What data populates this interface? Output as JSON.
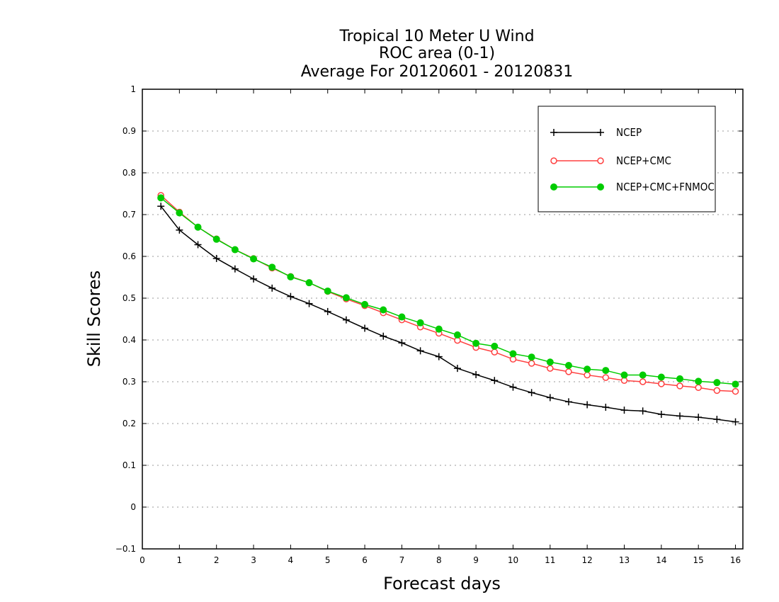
{
  "chart_data": {
    "type": "line",
    "title_lines": [
      "Tropical 10 Meter U Wind",
      "ROC area (0-1)",
      "Average For 20120601 - 20120831"
    ],
    "xlabel": "Forecast days",
    "ylabel": "Skill Scores",
    "xlim": [
      0,
      16.2
    ],
    "ylim": [
      -0.1,
      1
    ],
    "xticks": [
      "0",
      "1",
      "2",
      "3",
      "4",
      "5",
      "6",
      "7",
      "8",
      "9",
      "10",
      "11",
      "12",
      "13",
      "14",
      "15",
      "16"
    ],
    "yticks": [
      "−0.1",
      "0",
      "0.1",
      "0.2",
      "0.3",
      "0.4",
      "0.5",
      "0.6",
      "0.7",
      "0.8",
      "0.9",
      "1"
    ],
    "grid": "horizontal dotted",
    "legend_position": "top-right",
    "x": [
      0.5,
      1,
      1.5,
      2,
      2.5,
      3,
      3.5,
      4,
      4.5,
      5,
      5.5,
      6,
      6.5,
      7,
      7.5,
      8,
      8.5,
      9,
      9.5,
      10,
      10.5,
      11,
      11.5,
      12,
      12.5,
      13,
      13.5,
      14,
      14.5,
      15,
      15.5,
      16
    ],
    "series": [
      {
        "name": "NCEP",
        "color": "#000000",
        "marker": "plus",
        "values": [
          0.72,
          0.663,
          0.628,
          0.595,
          0.57,
          0.546,
          0.524,
          0.504,
          0.487,
          0.468,
          0.448,
          0.428,
          0.409,
          0.393,
          0.374,
          0.36,
          0.332,
          0.317,
          0.303,
          0.287,
          0.274,
          0.262,
          0.252,
          0.245,
          0.239,
          0.232,
          0.23,
          0.222,
          0.218,
          0.215,
          0.21,
          0.204
        ]
      },
      {
        "name": "NCEP+CMC",
        "color": "#ff4040",
        "marker": "open-circle",
        "values": [
          0.746,
          0.706,
          0.67,
          0.642,
          0.616,
          0.595,
          0.572,
          0.552,
          0.537,
          0.516,
          0.498,
          0.482,
          0.465,
          0.448,
          0.431,
          0.416,
          0.399,
          0.382,
          0.371,
          0.354,
          0.344,
          0.332,
          0.324,
          0.316,
          0.31,
          0.303,
          0.3,
          0.295,
          0.29,
          0.286,
          0.279,
          0.277
        ]
      },
      {
        "name": "NCEP+CMC+FNMOC",
        "color": "#00cc00",
        "marker": "filled-circle",
        "values": [
          0.74,
          0.704,
          0.67,
          0.641,
          0.616,
          0.594,
          0.574,
          0.551,
          0.537,
          0.517,
          0.501,
          0.485,
          0.472,
          0.455,
          0.441,
          0.426,
          0.412,
          0.392,
          0.385,
          0.367,
          0.359,
          0.347,
          0.339,
          0.33,
          0.327,
          0.316,
          0.316,
          0.311,
          0.307,
          0.301,
          0.298,
          0.294
        ]
      }
    ]
  }
}
